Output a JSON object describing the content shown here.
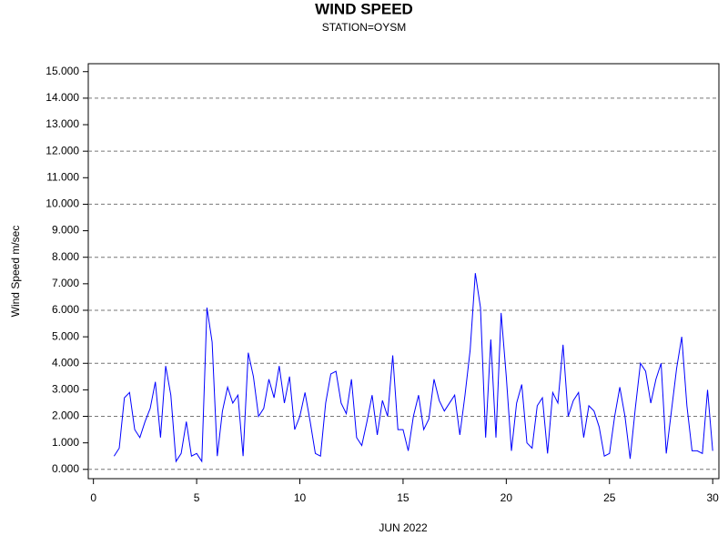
{
  "chart_data": {
    "type": "line",
    "title": "WIND SPEED",
    "subtitle": "STATION=OYSM",
    "x_label": "JUN 2022",
    "y_label": "Wind Speed m/sec",
    "x": [
      1,
      1.25,
      1.5,
      1.75,
      2,
      2.25,
      2.5,
      2.75,
      3,
      3.25,
      3.5,
      3.75,
      4,
      4.25,
      4.5,
      4.75,
      5,
      5.25,
      5.5,
      5.75,
      6,
      6.25,
      6.5,
      6.75,
      7,
      7.25,
      7.5,
      7.75,
      8,
      8.25,
      8.5,
      8.75,
      9,
      9.25,
      9.5,
      9.75,
      10,
      10.25,
      10.5,
      10.75,
      11,
      11.25,
      11.5,
      11.75,
      12,
      12.25,
      12.5,
      12.75,
      13,
      13.25,
      13.5,
      13.75,
      14,
      14.25,
      14.5,
      14.75,
      15,
      15.25,
      15.5,
      15.75,
      16,
      16.25,
      16.5,
      16.75,
      17,
      17.25,
      17.5,
      17.75,
      18,
      18.25,
      18.5,
      18.75,
      19,
      19.25,
      19.5,
      19.75,
      20,
      20.25,
      20.5,
      20.75,
      21,
      21.25,
      21.5,
      21.75,
      22,
      22.25,
      22.5,
      22.75,
      23,
      23.25,
      23.5,
      23.75,
      24,
      24.25,
      24.5,
      24.75,
      25,
      25.25,
      25.5,
      25.75,
      26,
      26.25,
      26.5,
      26.75,
      27,
      27.25,
      27.5,
      27.75,
      28,
      28.25,
      28.5,
      28.75,
      29,
      29.25,
      29.5,
      29.75,
      30
    ],
    "series": [
      {
        "name": "Wind Speed",
        "color": "#0000ff",
        "values": [
          0.5,
          0.8,
          2.7,
          2.9,
          1.5,
          1.2,
          1.8,
          2.3,
          3.3,
          1.2,
          3.9,
          2.8,
          0.3,
          0.6,
          1.8,
          0.5,
          0.6,
          0.3,
          6.1,
          4.8,
          0.5,
          2.2,
          3.1,
          2.5,
          2.8,
          0.5,
          4.4,
          3.5,
          2.0,
          2.3,
          3.4,
          2.7,
          3.9,
          2.5,
          3.5,
          1.5,
          2.0,
          2.9,
          1.8,
          0.6,
          0.5,
          2.5,
          3.6,
          3.7,
          2.5,
          2.1,
          3.4,
          1.2,
          0.9,
          1.8,
          2.8,
          1.3,
          2.6,
          2.0,
          4.3,
          1.5,
          1.5,
          0.7,
          2.0,
          2.8,
          1.5,
          1.9,
          3.4,
          2.6,
          2.2,
          2.5,
          2.8,
          1.3,
          2.8,
          4.5,
          7.4,
          6.1,
          1.2,
          4.9,
          1.2,
          5.9,
          3.5,
          0.7,
          2.5,
          3.2,
          1.0,
          0.8,
          2.4,
          2.7,
          0.6,
          2.9,
          2.5,
          4.7,
          2.0,
          2.6,
          2.9,
          1.2,
          2.4,
          2.2,
          1.6,
          0.5,
          0.6,
          2.0,
          3.1,
          2.0,
          0.4,
          2.3,
          4.0,
          3.7,
          2.5,
          3.4,
          4.0,
          0.6,
          2.2,
          3.8,
          5.0,
          2.4,
          0.7,
          0.7,
          0.6,
          3.0,
          0.7
        ]
      }
    ],
    "xlim": [
      -0.25,
      30.3
    ],
    "xticks": [
      0,
      5,
      10,
      15,
      20,
      25,
      30
    ],
    "ylim": [
      -0.35,
      15.3
    ],
    "yticks": [
      {
        "value": 0,
        "label": "0.000"
      },
      {
        "value": 1,
        "label": "1.000"
      },
      {
        "value": 2,
        "label": "2.000"
      },
      {
        "value": 3,
        "label": "3.000"
      },
      {
        "value": 4,
        "label": "4.000"
      },
      {
        "value": 5,
        "label": "5.000"
      },
      {
        "value": 6,
        "label": "6.000"
      },
      {
        "value": 7,
        "label": "7.000"
      },
      {
        "value": 8,
        "label": "8.000"
      },
      {
        "value": 9,
        "label": "9.000"
      },
      {
        "value": 10,
        "label": "10.000"
      },
      {
        "value": 11,
        "label": "11.000"
      },
      {
        "value": 12,
        "label": "12.000"
      },
      {
        "value": 13,
        "label": "13.000"
      },
      {
        "value": 14,
        "label": "14.000"
      },
      {
        "value": 15,
        "label": "15.000"
      }
    ],
    "grid_lines": [
      0,
      2,
      4,
      6,
      8,
      10,
      12,
      14
    ],
    "grid_style": "dashed"
  }
}
